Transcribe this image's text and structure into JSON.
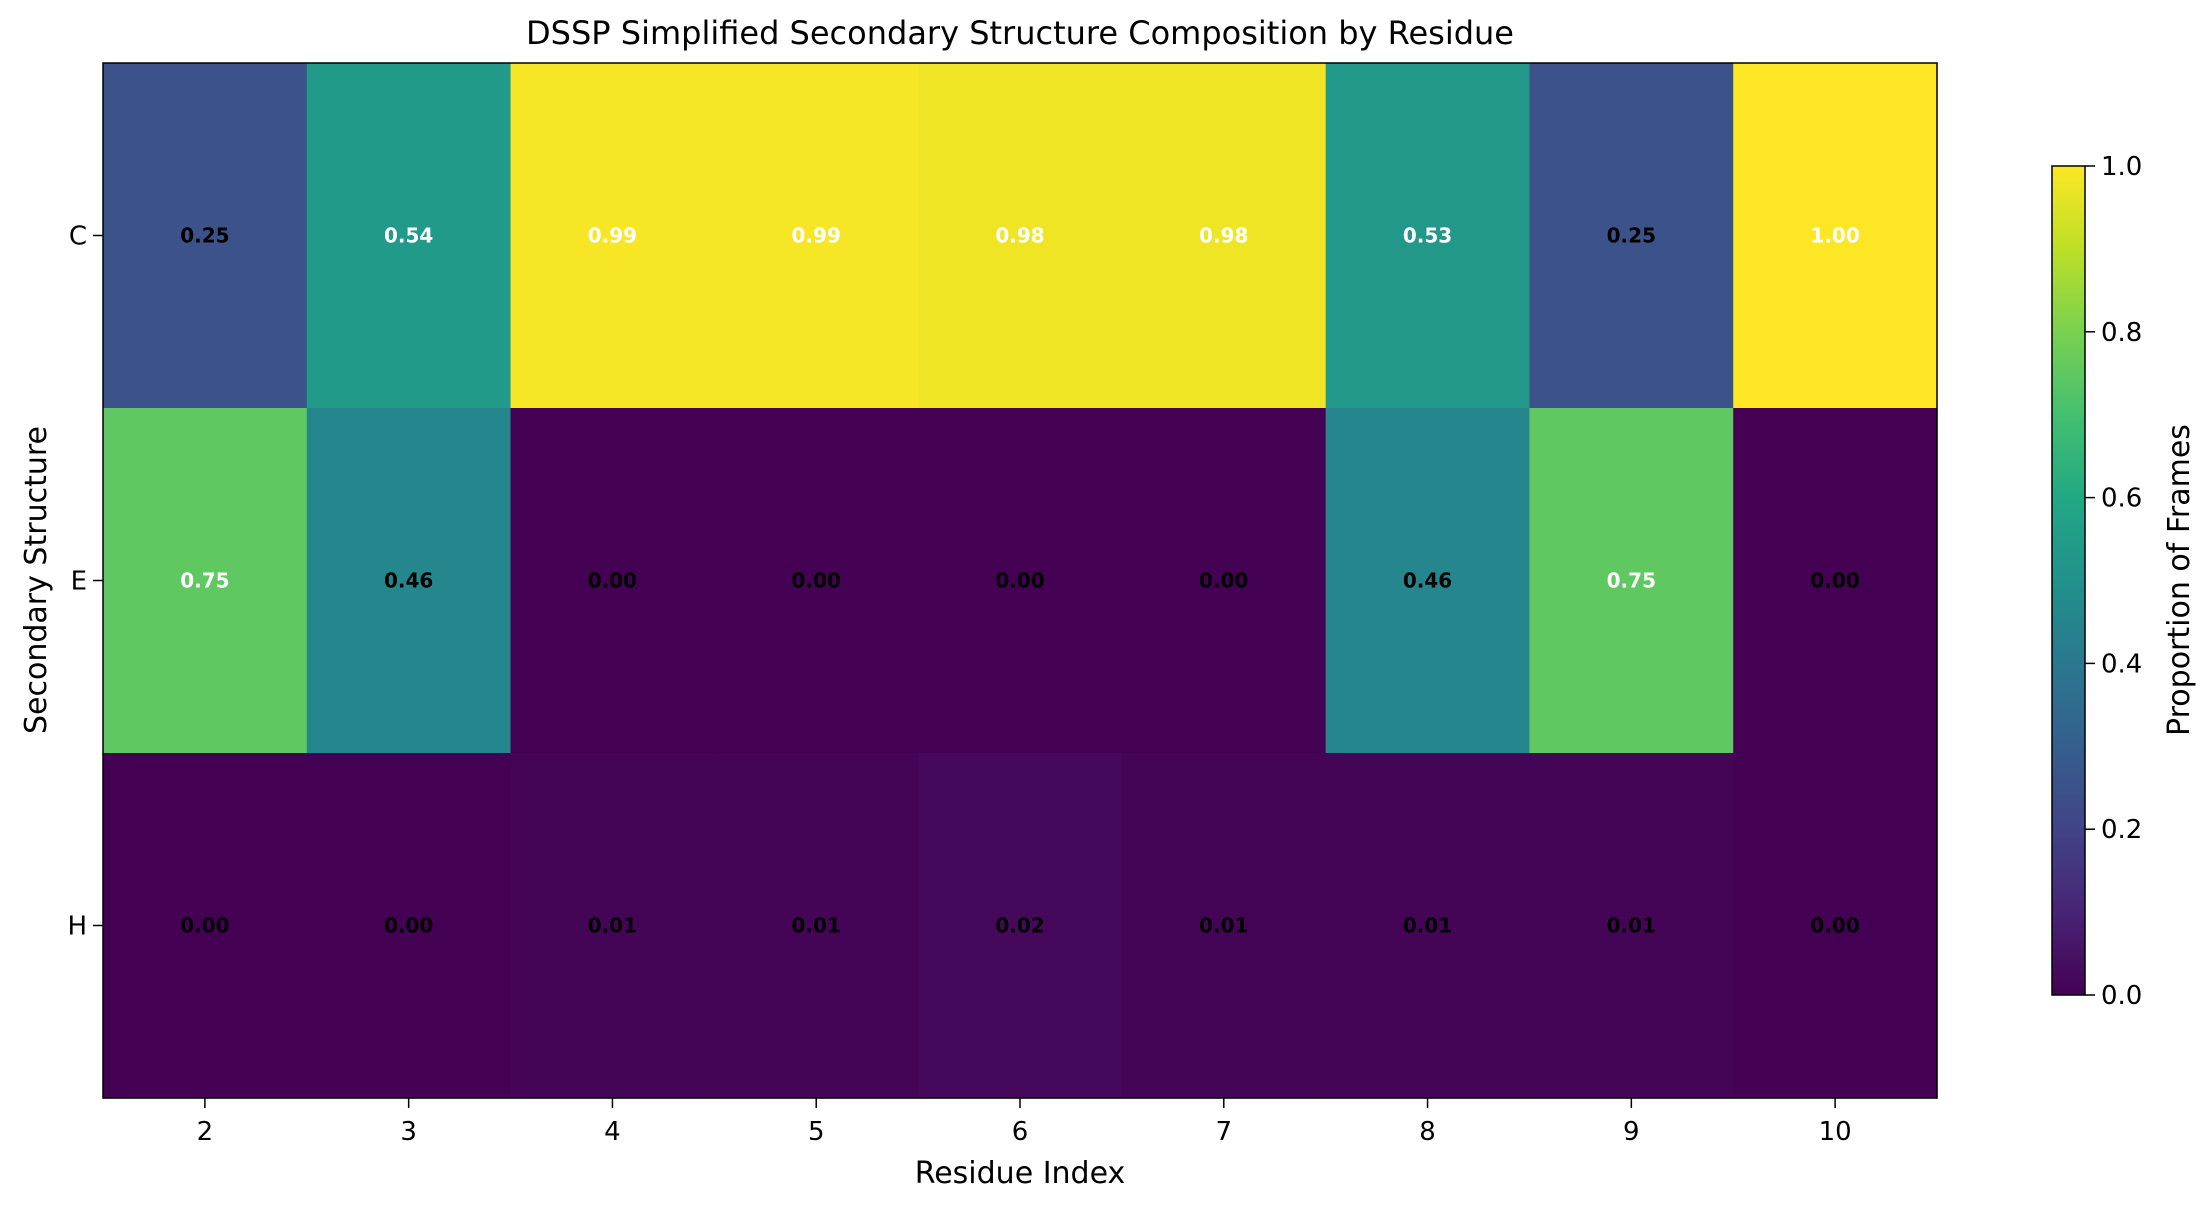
{
  "chart_data": {
    "type": "heatmap",
    "title": "DSSP Simplified Secondary Structure Composition by Residue",
    "xlabel": "Residue Index",
    "ylabel": "Secondary Structure",
    "x_categories": [
      "2",
      "3",
      "4",
      "5",
      "6",
      "7",
      "8",
      "9",
      "10"
    ],
    "y_categories": [
      "C",
      "E",
      "H"
    ],
    "values": [
      [
        0.25,
        0.54,
        0.99,
        0.99,
        0.98,
        0.98,
        0.53,
        0.25,
        1.0
      ],
      [
        0.75,
        0.46,
        0.0,
        0.0,
        0.0,
        0.0,
        0.46,
        0.75,
        0.0
      ],
      [
        0.0,
        0.0,
        0.01,
        0.01,
        0.02,
        0.01,
        0.01,
        0.01,
        0.0
      ]
    ],
    "value_labels": [
      [
        "0.25",
        "0.54",
        "0.99",
        "0.99",
        "0.98",
        "0.98",
        "0.53",
        "0.25",
        "1.00"
      ],
      [
        "0.75",
        "0.46",
        "0.00",
        "0.00",
        "0.00",
        "0.00",
        "0.46",
        "0.75",
        "0.00"
      ],
      [
        "0.00",
        "0.00",
        "0.01",
        "0.01",
        "0.02",
        "0.01",
        "0.01",
        "0.01",
        "0.00"
      ]
    ],
    "colormap": "viridis",
    "colorbar": {
      "label": "Proportion of Frames",
      "range": [
        0.0,
        1.0
      ],
      "ticks": [
        "0.0",
        "0.2",
        "0.4",
        "0.6",
        "0.8",
        "1.0"
      ]
    },
    "grid": false
  }
}
